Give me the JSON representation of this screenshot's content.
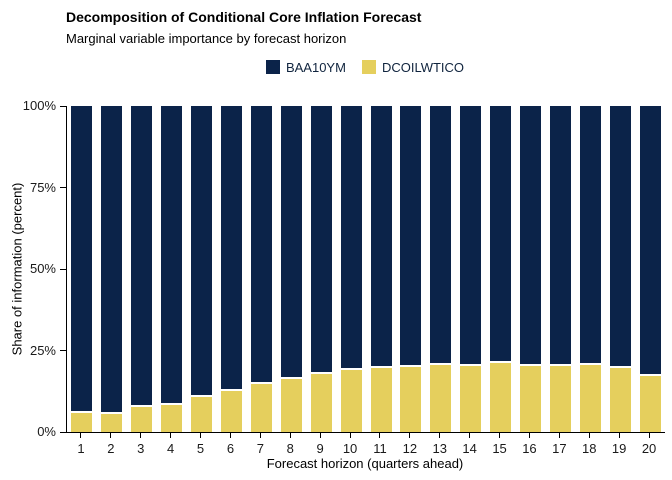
{
  "header": {
    "title": "Decomposition of Conditional Core Inflation Forecast",
    "subtitle": "Marginal variable importance by forecast horizon"
  },
  "colors": {
    "baa10ym": "#0b2349",
    "dcoilwtico": "#e5cf5d",
    "axis": "#000000",
    "tick_label": "#1a1a1a",
    "background": "#ffffff"
  },
  "chart_data": {
    "type": "bar",
    "stacked": true,
    "title": "Decomposition of Conditional Core Inflation Forecast",
    "subtitle": "Marginal variable importance by forecast horizon",
    "xlabel": "Forecast horizon (quarters ahead)",
    "ylabel": "Share of information (percent)",
    "ylim": [
      0,
      100
    ],
    "yticks": [
      {
        "value": 0,
        "label": "0%"
      },
      {
        "value": 25,
        "label": "25%"
      },
      {
        "value": 50,
        "label": "50%"
      },
      {
        "value": 75,
        "label": "75%"
      },
      {
        "value": 100,
        "label": "100%"
      }
    ],
    "categories": [
      "1",
      "2",
      "3",
      "4",
      "5",
      "6",
      "7",
      "8",
      "9",
      "10",
      "11",
      "12",
      "13",
      "14",
      "15",
      "16",
      "17",
      "18",
      "19",
      "20"
    ],
    "series": [
      {
        "name": "BAA10YM",
        "color": "#0b2349",
        "values": [
          93.5,
          93.9,
          91.7,
          91.0,
          88.5,
          86.7,
          84.6,
          83.0,
          81.6,
          80.5,
          79.7,
          79.4,
          78.7,
          79.1,
          78.3,
          79.2,
          79.1,
          78.7,
          79.8,
          82.1
        ]
      },
      {
        "name": "DCOILWTICO",
        "color": "#e5cf5d",
        "values": [
          6.5,
          6.1,
          8.3,
          9.0,
          11.5,
          13.3,
          15.4,
          17.0,
          18.4,
          19.5,
          20.3,
          20.6,
          21.3,
          20.9,
          21.7,
          20.8,
          20.9,
          21.3,
          20.2,
          17.9
        ]
      }
    ],
    "legend_position": "top",
    "grid": false
  }
}
